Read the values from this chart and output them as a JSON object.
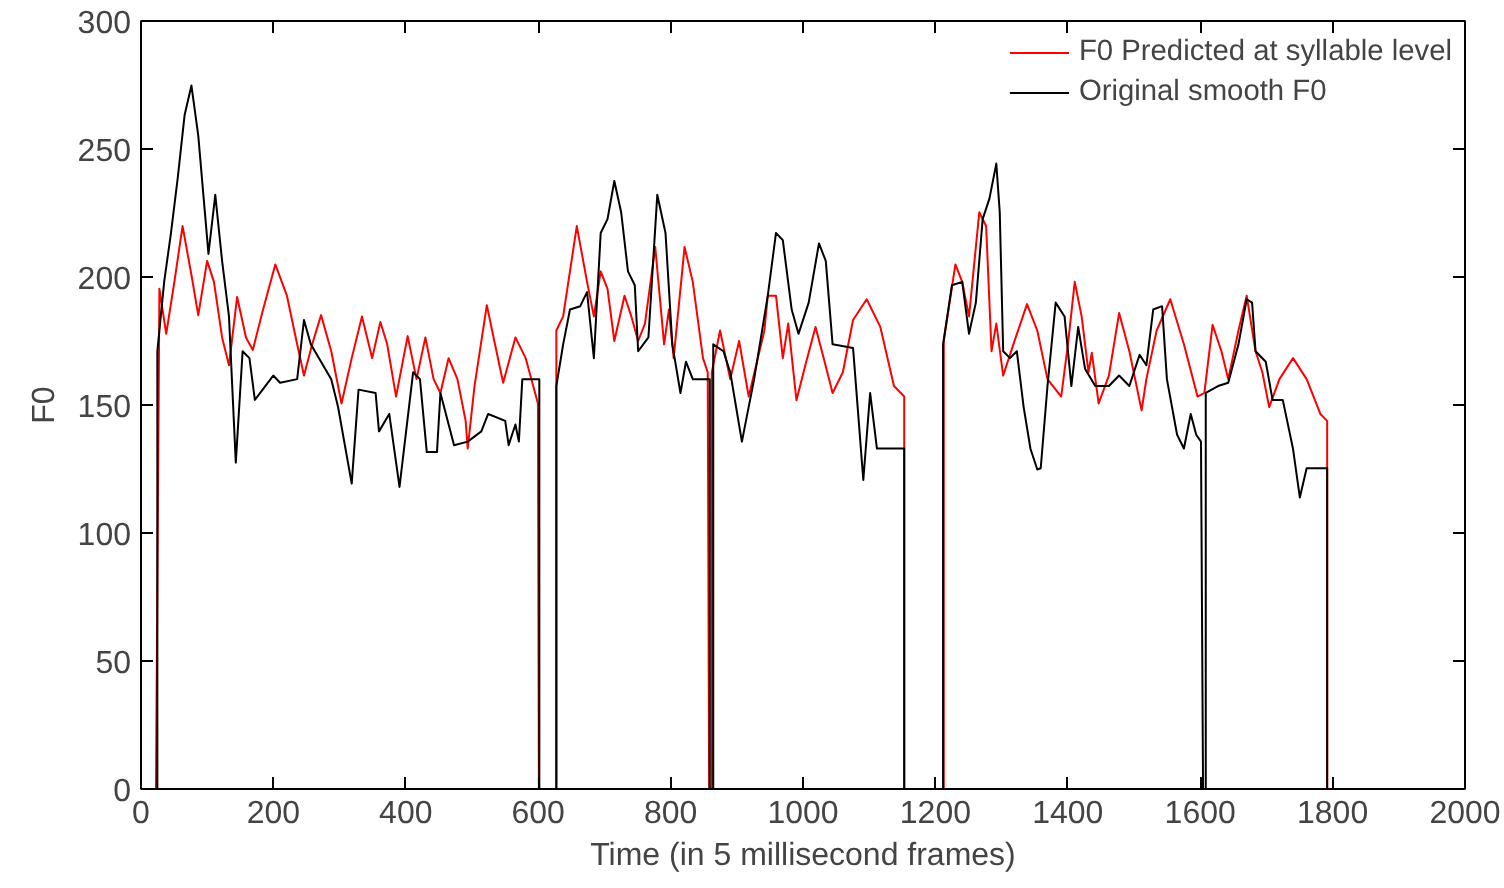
{
  "chart_data": {
    "type": "line",
    "xlabel": "Time (in 5 millisecond frames)",
    "ylabel": "F0",
    "xlim": [
      0,
      2000
    ],
    "ylim": [
      0,
      300
    ],
    "xticks": [
      0,
      200,
      400,
      600,
      800,
      1000,
      1200,
      1400,
      1600,
      1800,
      2000
    ],
    "yticks": [
      0,
      50,
      100,
      150,
      200,
      250,
      300
    ],
    "grid": false,
    "legend": "top right",
    "marker": "none",
    "line_style": "solid",
    "series": [
      {
        "name": "F0 Predicted at syllable level",
        "color": "#ff0000",
        "x": [
          0,
          22.6,
          27.8,
          38.1,
          50.4,
          62.8,
          76.2,
          86.5,
          99.9,
          110.2,
          122.5,
          132.9,
          145.2,
          158.6,
          168.9,
          184.4,
          202.9,
          220.4,
          235.9,
          246.2,
          258.6,
          272,
          287.4,
          302.9,
          318.3,
          333.8,
          349.2,
          361.6,
          371.9,
          385.3,
          402.8,
          416.2,
          429.6,
          442,
          452.3,
          464.6,
          478,
          490.4,
          493.5,
          503.8,
          522.4,
          534.7,
          547.1,
          565.6,
          581.1,
          599.6,
          601,
          627.4,
          627.4,
          637.7,
          658.3,
          673.8,
          684.1,
          694.4,
          704.7,
          715,
          730.4,
          740.7,
          751,
          761.3,
          776.8,
          790.2,
          797.4,
          804.6,
          821.1,
          833.5,
          848.9,
          856.1,
          858.2,
          862.3,
          862.3,
          874.7,
          890.1,
          903.5,
          918,
          941.7,
          946.8,
          959.2,
          969.5,
          977.7,
          990.1,
          1003.5,
          1018.9,
          1031.3,
          1044.7,
          1060.2,
          1075.6,
          1096.2,
          1116.8,
          1137.4,
          1152.9,
          1152.9,
          1212.6,
          1212.6,
          1230.2,
          1240.5,
          1250.8,
          1266.3,
          1276.6,
          1284.8,
          1292,
          1302.4,
          1317.8,
          1338.4,
          1353.9,
          1369.3,
          1390,
          1400.2,
          1410.5,
          1420.9,
          1431.2,
          1436.3,
          1446.6,
          1462.1,
          1477.5,
          1493,
          1511.5,
          1518.7,
          1534.2,
          1554.8,
          1575.4,
          1596,
          1606.3,
          1618.7,
          1632.1,
          1642.4,
          1657.8,
          1670.2,
          1683.6,
          1693.9,
          1704.2,
          1719.7,
          1740.2,
          1760.8,
          1781.5,
          1791.8,
          1791.8,
          1840
        ],
        "values": [
          0,
          0,
          195.4,
          177.8,
          198.1,
          219.9,
          200.8,
          185.1,
          206.3,
          198.1,
          176.4,
          165.5,
          192.2,
          176.4,
          171.5,
          187.3,
          204.9,
          192.7,
          173.7,
          161.5,
          173.7,
          185.1,
          171.0,
          150.6,
          168.3,
          184.6,
          168.3,
          182.4,
          173.7,
          153.3,
          176.9,
          160.1,
          176.4,
          160.1,
          154.7,
          168.3,
          160.1,
          143.8,
          133.0,
          157.4,
          189.0,
          173.7,
          158.7,
          176.4,
          168.3,
          150.6,
          0,
          0,
          179.1,
          184.6,
          219.9,
          198.1,
          184.6,
          202.2,
          195.4,
          175.0,
          192.7,
          184.6,
          175.0,
          181.8,
          211.7,
          173.7,
          187.3,
          168.3,
          211.7,
          198.1,
          168.3,
          162.8,
          0,
          0,
          162.8,
          179.1,
          160.1,
          175.0,
          153.3,
          179.1,
          192.7,
          192.7,
          168.3,
          181.8,
          151.9,
          165.5,
          180.5,
          168.3,
          154.7,
          162.8,
          183.2,
          191.3,
          180.5,
          157.4,
          153.3,
          0,
          0,
          175.0,
          204.9,
          198.1,
          184.6,
          225.3,
          219.9,
          171.0,
          181.8,
          161.5,
          173.7,
          189.4,
          179.1,
          160.1,
          153.3,
          173.7,
          198.1,
          184.6,
          162.8,
          170.4,
          150.6,
          161.5,
          185.9,
          171.0,
          147.9,
          160.1,
          179.1,
          191.3,
          173.7,
          153.3,
          154.7,
          181.3,
          171.0,
          160.1,
          179.1,
          192.7,
          171.0,
          162.8,
          149.2,
          160.1,
          168.3,
          160.1,
          146.5,
          143.8,
          0,
          0
        ]
      },
      {
        "name": "Original smooth F0",
        "color": "#000000",
        "x": [
          0,
          24.7,
          24.7,
          35,
          45.3,
          55.6,
          65.9,
          76.2,
          86.5,
          101.9,
          112.2,
          122.5,
          132.9,
          143.2,
          153.5,
          163.8,
          172,
          199.8,
          210.1,
          235.9,
          246.2,
          256.5,
          287.4,
          297.7,
          318.3,
          328.6,
          354.4,
          359.5,
          375,
          390.5,
          411.1,
          421.4,
          431.7,
          447.1,
          452.3,
          472.9,
          493.5,
          514.1,
          524.4,
          550.2,
          555.3,
          565.6,
          570.8,
          576,
          601.7,
          601.7,
          627.4,
          627.4,
          637.7,
          648,
          663.5,
          673.8,
          684.1,
          694.4,
          704.7,
          715,
          725.3,
          735.6,
          745.9,
          751,
          766.5,
          779.9,
          792.3,
          802.6,
          814.9,
          823.2,
          833.5,
          859.2,
          859.2,
          864.4,
          864.4,
          879.8,
          890.1,
          907.7,
          926.2,
          946.8,
          959.2,
          969.5,
          982.9,
          993.2,
          1008.6,
          1024.1,
          1034.4,
          1044.7,
          1075.6,
          1091.1,
          1101.4,
          1111.7,
          1152.9,
          1152.9,
          1211.6,
          1211.6,
          1225,
          1240.5,
          1250.8,
          1261.1,
          1271.4,
          1281.7,
          1292,
          1297.2,
          1302.4,
          1312.7,
          1323,
          1333.3,
          1343.6,
          1353.9,
          1359.1,
          1369.3,
          1381.7,
          1395.1,
          1405.4,
          1415.7,
          1426,
          1441.5,
          1462.1,
          1477.5,
          1493,
          1508.4,
          1518.7,
          1529,
          1542.4,
          1549.7,
          1565.1,
          1575.4,
          1585.7,
          1594,
          1601.2,
          1604.3,
          1608.4,
          1608.4,
          1626.9,
          1642.4,
          1657.8,
          1670.2,
          1678.4,
          1683.6,
          1699,
          1709.3,
          1724.7,
          1740.2,
          1750.5,
          1760.8,
          1791.8,
          1791.8,
          1840
        ],
        "values": [
          0,
          0,
          171.0,
          198.1,
          217.2,
          238.9,
          263.3,
          274.8,
          255.2,
          209.0,
          232.1,
          206.3,
          184.6,
          127.5,
          171.0,
          168.3,
          152.0,
          161.5,
          158.7,
          160.1,
          183.2,
          173.7,
          160.1,
          149.2,
          119.3,
          156.0,
          154.7,
          139.7,
          146.5,
          118.0,
          162.8,
          160.1,
          131.6,
          131.6,
          154.7,
          134.3,
          135.7,
          139.7,
          146.5,
          143.8,
          134.3,
          142.4,
          135.7,
          160.1,
          160.1,
          0,
          0,
          157.4,
          173.7,
          187.3,
          188.6,
          194.1,
          168.3,
          217.2,
          222.6,
          237.5,
          225.3,
          202.2,
          196.8,
          171.0,
          176.4,
          232.1,
          217.2,
          173.7,
          154.7,
          166.9,
          160.1,
          160.1,
          0,
          0,
          173.7,
          171.0,
          162.8,
          135.7,
          160.1,
          192.7,
          217.2,
          214.4,
          187.3,
          177.8,
          190.0,
          213.1,
          206.3,
          173.7,
          172.3,
          120.7,
          154.7,
          133.0,
          133.0,
          0,
          0,
          173.7,
          196.8,
          198.1,
          177.8,
          190.0,
          222.6,
          230.7,
          244.3,
          225.3,
          171.0,
          168.3,
          171.0,
          149.2,
          132.9,
          124.8,
          125.3,
          157.4,
          190.0,
          184.6,
          157.4,
          180.5,
          164.2,
          157.4,
          157.4,
          161.5,
          157.4,
          169.6,
          165.5,
          187.3,
          188.6,
          160.1,
          138.4,
          133.0,
          146.5,
          138.4,
          135.7,
          0,
          0,
          154.7,
          157.4,
          158.7,
          173.7,
          191.3,
          190.0,
          171.0,
          166.9,
          152.0,
          152.0,
          132.9,
          113.9,
          125.3,
          125.3,
          0,
          0
        ]
      }
    ]
  }
}
